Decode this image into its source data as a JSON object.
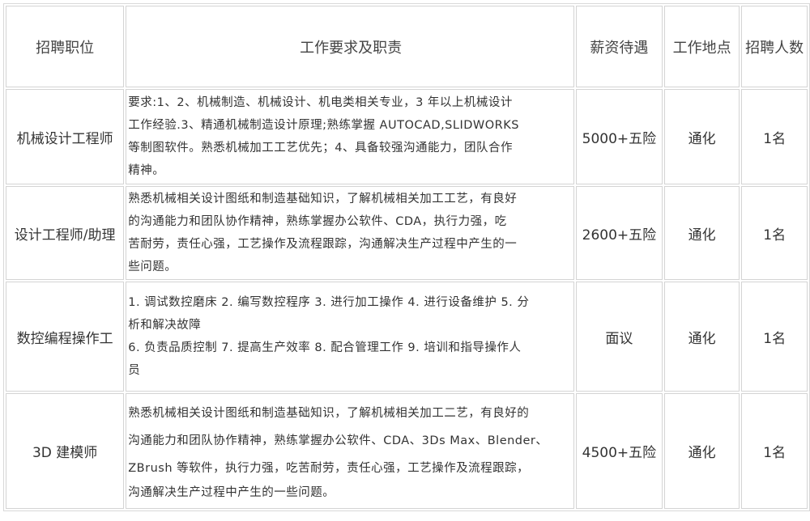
{
  "headers": [
    "招聘职位",
    "工作要求及职责",
    "薪资待遇",
    "工作地点",
    "招聘人数"
  ],
  "rows": [
    {
      "position": "机械设计工程师",
      "desc_lines": [
        "要求:1、2、机械制造、机械设计、机电类相关专业，3 年以上机械设计",
        "工作经验.3、精通机械制造设计原理;熟练掌握 AUTOCAD,SLIDWORKS",
        "等制图软件。熟悉机械加工工艺优先；4、具备较强沟通能力，团队合作",
        "精神。"
      ],
      "salary": "5000+五险",
      "location": "通化",
      "count": "1名"
    },
    {
      "position": "设计工程师/助理",
      "desc_lines": [
        "熟悉机械相关设计图纸和制造基础知识，了解机械相关加工工艺，有良好",
        "的沟通能力和团队协作精神，熟练掌握办公软件、CDA，执行力强，吃",
        "苦耐劳，责任心强，工艺操作及流程跟踪，沟通解决生产过程中产生的一",
        "些问题。"
      ],
      "salary": "2600+五险",
      "location": "通化",
      "count": "1名"
    },
    {
      "position": "数控编程操作工",
      "desc_lines": [
        "1. 调试数控磨床 2. 编写数控程序 3. 进行加工操作 4. 进行设备维护 5. 分",
        "析和解决故障",
        "6. 负责品质控制 7. 提高生产效率 8. 配合管理工作 9. 培训和指导操作人",
        "员"
      ],
      "salary": "面议",
      "location": "通化",
      "count": "1名"
    },
    {
      "position": "3D 建模师",
      "desc_lines": [
        "熟悉机械相关设计图纸和制造基础知识，了解机械相关加工二艺，有良好的",
        "沟通能力和团队协作精神，熟练掌握办公软件、CDA、3Ds Max、Blender、",
        "ZBrush 等软件，执行力强，吃苦耐劳，责任心强，工艺操作及流程跟踪，",
        "沟通解决生产过程中产生的一些问题。"
      ],
      "salary": "4500+五险",
      "location": "通化",
      "count": "1名"
    }
  ]
}
